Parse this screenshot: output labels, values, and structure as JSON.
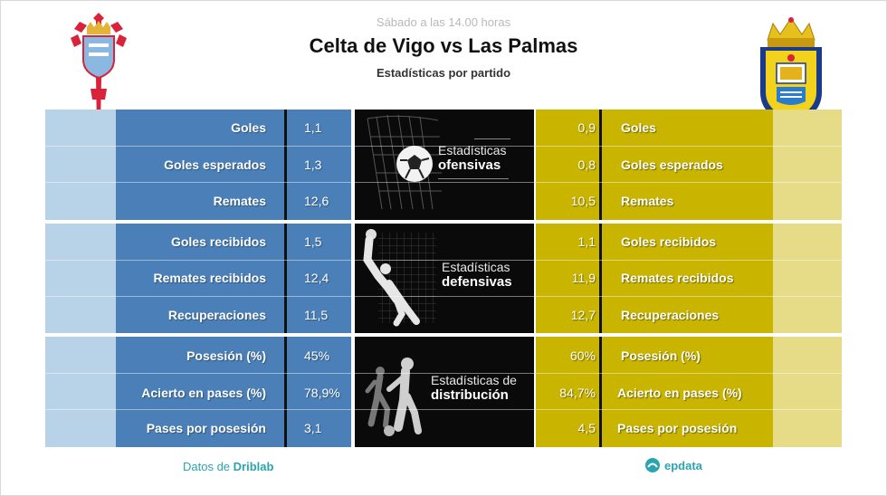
{
  "header": {
    "datetime": "Sábado a las 14.00 horas",
    "title": "Celta de Vigo vs Las Palmas",
    "subtitle": "Estadísticas por partido"
  },
  "teams": {
    "left": {
      "logo": "celta-crest-icon",
      "color": "#4a7fb8"
    },
    "right": {
      "logo": "las-palmas-crest-icon",
      "color": "#c9b400"
    }
  },
  "groups": [
    {
      "panel": {
        "line1": "Estadísticas",
        "line2": "ofensivas",
        "icon": "goal-net-ball-icon"
      },
      "rows": [
        {
          "label": "Goles",
          "left": "1,1",
          "right": "0,9"
        },
        {
          "label": "Goles esperados",
          "left": "1,3",
          "right": "0,8"
        },
        {
          "label": "Remates",
          "left": "12,6",
          "right": "10,5"
        }
      ]
    },
    {
      "panel": {
        "line1": "Estadísticas",
        "line2": "defensivas",
        "icon": "goalkeeper-icon"
      },
      "rows": [
        {
          "label": "Goles recibidos",
          "left": "1,5",
          "right": "1,1"
        },
        {
          "label": "Remates recibidos",
          "left": "12,4",
          "right": "11,9"
        },
        {
          "label": "Recuperaciones",
          "left": "11,5",
          "right": "12,7"
        }
      ]
    },
    {
      "panel": {
        "line1": "Estadísticas de",
        "line2": "distribución",
        "icon": "players-icon"
      },
      "rows": [
        {
          "label": "Posesión (%)",
          "left": "45%",
          "right": "60%"
        },
        {
          "label": "Acierto en pases (%)",
          "left": "78,9%",
          "right": "84,7%"
        },
        {
          "label": "Pases por posesión",
          "left": "3,1",
          "right": "4,5"
        }
      ]
    }
  ],
  "footer": {
    "source_prefix": "Datos de ",
    "source_name": "Driblab",
    "brand": "epdata"
  }
}
